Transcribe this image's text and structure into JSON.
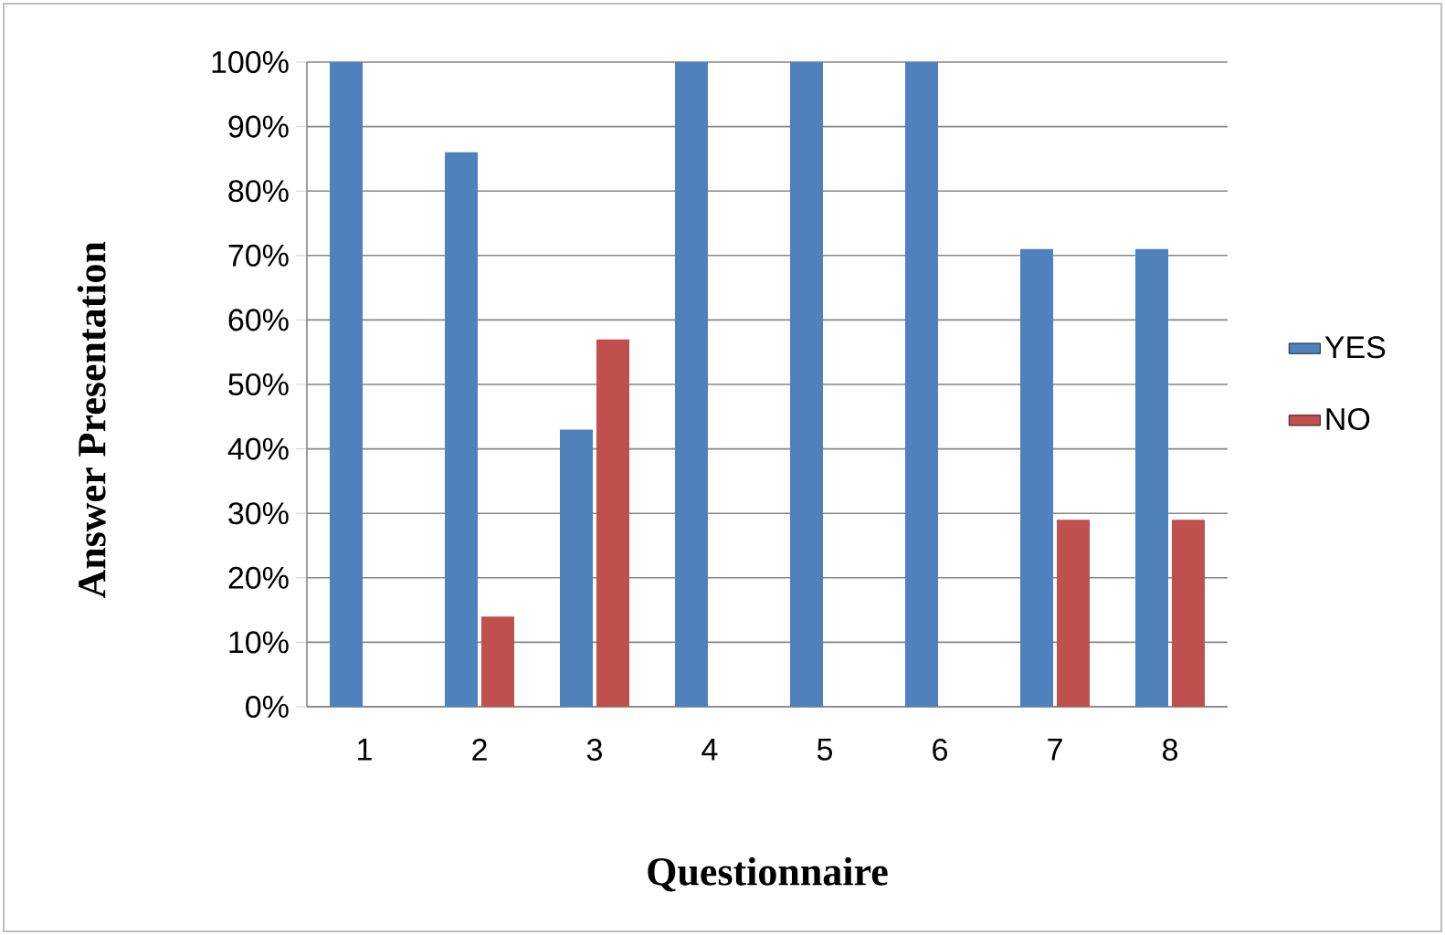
{
  "chart_data": {
    "type": "bar",
    "xlabel": "Questionnaire",
    "ylabel": "Answer Presentation",
    "categories": [
      "1",
      "2",
      "3",
      "4",
      "5",
      "6",
      "7",
      "8"
    ],
    "series": [
      {
        "name": "YES",
        "color": "#4f81bd",
        "values": [
          100,
          86,
          43,
          100,
          100,
          100,
          71,
          71
        ]
      },
      {
        "name": "NO",
        "color": "#c0504d",
        "values": [
          0,
          14,
          57,
          0,
          0,
          0,
          29,
          29
        ]
      }
    ],
    "ylim": [
      0,
      100
    ],
    "yticks": [
      {
        "value": 0,
        "label": "0%"
      },
      {
        "value": 10,
        "label": "10%"
      },
      {
        "value": 20,
        "label": "20%"
      },
      {
        "value": 30,
        "label": "30%"
      },
      {
        "value": 40,
        "label": "40%"
      },
      {
        "value": 50,
        "label": "50%"
      },
      {
        "value": 60,
        "label": "60%"
      },
      {
        "value": 70,
        "label": "70%"
      },
      {
        "value": 80,
        "label": "80%"
      },
      {
        "value": 90,
        "label": "90%"
      },
      {
        "value": 100,
        "label": "100%"
      }
    ],
    "grid": "y",
    "legend": "right"
  }
}
